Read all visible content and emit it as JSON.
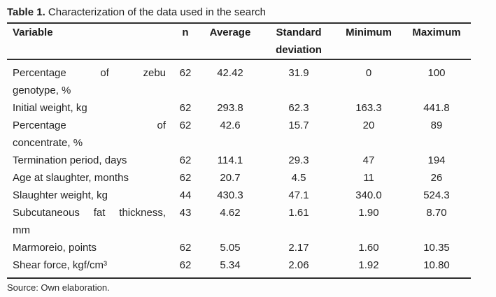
{
  "chart_data": {
    "type": "table",
    "title_label": "Table 1.",
    "title_text": "Characterization of the data used in the search",
    "columns": [
      "Variable",
      "n",
      "Average",
      "Standard deviation",
      "Minimum",
      "Maximum"
    ],
    "rows": [
      {
        "variable": "Percentage of zebu genotype, %",
        "lines": [
          "Percentage of zebu",
          "genotype, %"
        ],
        "n": "62",
        "average": "42.42",
        "sd": "31.9",
        "min": "0",
        "max": "100"
      },
      {
        "variable": "Initial weight, kg",
        "lines": [
          "Initial weight, kg"
        ],
        "n": "62",
        "average": "293.8",
        "sd": "62.3",
        "min": "163.3",
        "max": "441.8"
      },
      {
        "variable": "Percentage of concentrate, %",
        "lines": [
          "Percentage of",
          "concentrate, %"
        ],
        "n": "62",
        "average": "42.6",
        "sd": "15.7",
        "min": "20",
        "max": "89"
      },
      {
        "variable": "Termination period, days",
        "lines": [
          "Termination period, days"
        ],
        "n": "62",
        "average": "114.1",
        "sd": "29.3",
        "min": "47",
        "max": "194"
      },
      {
        "variable": "Age at slaughter, months",
        "lines": [
          "Age at slaughter, months"
        ],
        "n": "62",
        "average": "20.7",
        "sd": "4.5",
        "min": "11",
        "max": "26"
      },
      {
        "variable": "Slaughter weight, kg",
        "lines": [
          "Slaughter weight, kg"
        ],
        "n": "44",
        "average": "430.3",
        "sd": "47.1",
        "min": "340.0",
        "max": "524.3"
      },
      {
        "variable": "Subcutaneous fat thickness, mm",
        "lines": [
          "Subcutaneous fat thickness,",
          "mm"
        ],
        "n": "43",
        "average": "4.62",
        "sd": "1.61",
        "min": "1.90",
        "max": "8.70"
      },
      {
        "variable": "Marmoreio, points",
        "lines": [
          "Marmoreio, points"
        ],
        "n": "62",
        "average": "5.05",
        "sd": "2.17",
        "min": "1.60",
        "max": "10.35"
      },
      {
        "variable": "Shear force, kgf/cm³",
        "lines": [
          "Shear force, kgf/cm³"
        ],
        "n": "62",
        "average": "5.34",
        "sd": "2.06",
        "min": "1.92",
        "max": "10.80"
      }
    ],
    "source": "Source: Own elaboration.",
    "colors": {
      "text": "#222222",
      "rule": "#2e2e2e",
      "background": "#fdfdfd"
    }
  }
}
